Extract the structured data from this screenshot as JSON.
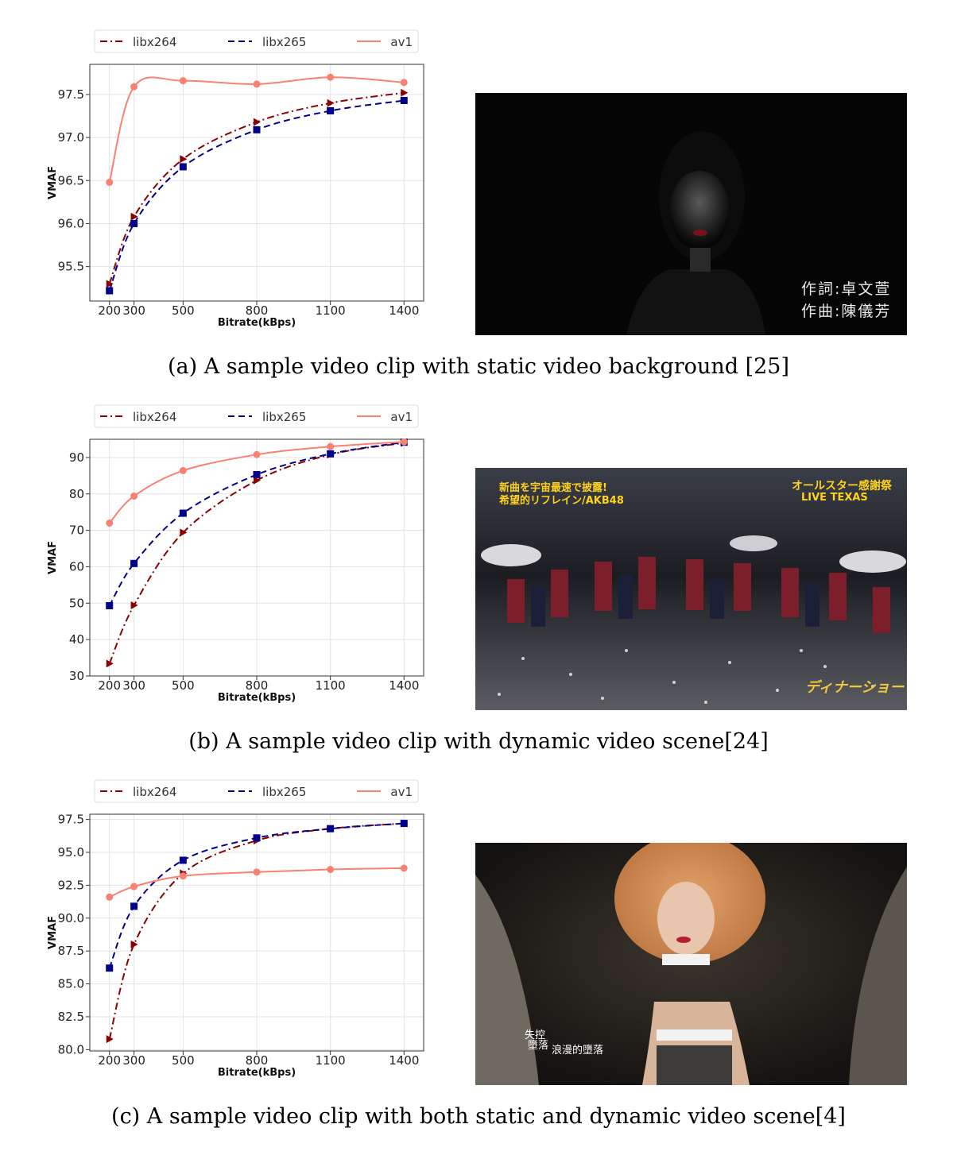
{
  "colors": {
    "libx264": "#8b0000",
    "libx265": "#00008b",
    "av1": "#fa8072"
  },
  "panels": [
    {
      "caption": "(a)  A sample video clip with static video background [25]",
      "chart_data": {
        "type": "line",
        "title": "",
        "xlabel": "Bitrate(kBps)",
        "ylabel": "VMAF",
        "x": [
          200,
          300,
          500,
          800,
          1100,
          1400
        ],
        "x_tick_labels": [
          "200",
          "300",
          "500",
          "800",
          "1100",
          "1400"
        ],
        "ylim": [
          95.1,
          97.85
        ],
        "yticks": [
          95.5,
          96.0,
          96.5,
          97.0,
          97.5
        ],
        "y_tick_labels": [
          "95.5",
          "96.0",
          "96.5",
          "97.0",
          "97.5"
        ],
        "grid": true,
        "legend": "top",
        "series": [
          {
            "name": "libx264",
            "values": [
              95.3,
              96.08,
              96.75,
              97.18,
              97.4,
              97.52
            ]
          },
          {
            "name": "libx265",
            "values": [
              95.22,
              96.0,
              96.66,
              97.09,
              97.31,
              97.43
            ]
          },
          {
            "name": "av1",
            "values": [
              96.48,
              97.59,
              97.66,
              97.62,
              97.7,
              97.64
            ]
          }
        ]
      },
      "overlay_lines": [
        "作詞:卓文萱",
        "作曲:陳儀芳"
      ]
    },
    {
      "caption": "(b)  A sample video clip with dynamic video scene[24]",
      "chart_data": {
        "type": "line",
        "title": "",
        "xlabel": "Bitrate(kBps)",
        "ylabel": "VMAF",
        "x": [
          200,
          300,
          500,
          800,
          1100,
          1400
        ],
        "x_tick_labels": [
          "200",
          "300",
          "500",
          "800",
          "1100",
          "1400"
        ],
        "ylim": [
          30,
          95
        ],
        "yticks": [
          30,
          40,
          50,
          60,
          70,
          80,
          90
        ],
        "y_tick_labels": [
          "30",
          "40",
          "50",
          "60",
          "70",
          "80",
          "90"
        ],
        "grid": true,
        "legend": "top",
        "series": [
          {
            "name": "libx264",
            "values": [
              33.4,
              49.4,
              69.4,
              83.7,
              90.8,
              94.0
            ]
          },
          {
            "name": "libx265",
            "values": [
              49.3,
              60.9,
              74.7,
              85.3,
              91.0,
              94.2
            ]
          },
          {
            "name": "av1",
            "values": [
              72.0,
              79.4,
              86.4,
              90.8,
              93.0,
              94.3
            ]
          }
        ]
      },
      "overlay_left_lines": [
        "新曲を宇宙最速で披露!",
        "希望的リフレイン/AKB48"
      ],
      "overlay_right_lines": [
        "オールスター感謝祭",
        "LIVE TEXAS"
      ],
      "overlay_logo": "ディナーショー"
    },
    {
      "caption": "(c)  A sample video clip with both static and dynamic video scene[4]",
      "chart_data": {
        "type": "line",
        "title": "",
        "xlabel": "Bitrate(kBps)",
        "ylabel": "VMAF",
        "x": [
          200,
          300,
          500,
          800,
          1100,
          1400
        ],
        "x_tick_labels": [
          "200",
          "300",
          "500",
          "800",
          "1100",
          "1400"
        ],
        "ylim": [
          79.9,
          97.9
        ],
        "yticks": [
          80.0,
          82.5,
          85.0,
          87.5,
          90.0,
          92.5,
          95.0,
          97.5
        ],
        "y_tick_labels": [
          "80.0",
          "82.5",
          "85.0",
          "87.5",
          "90.0",
          "92.5",
          "95.0",
          "97.5"
        ],
        "grid": true,
        "legend": "top",
        "series": [
          {
            "name": "libx264",
            "values": [
              80.8,
              88.0,
              93.4,
              95.9,
              96.8,
              97.2
            ]
          },
          {
            "name": "libx265",
            "values": [
              86.2,
              90.9,
              94.4,
              96.1,
              96.8,
              97.2
            ]
          },
          {
            "name": "av1",
            "values": [
              91.6,
              92.4,
              93.2,
              93.5,
              93.7,
              93.8
            ]
          }
        ]
      },
      "overlay_lines": [
        "失控",
        "墮落",
        "浪漫的墮落"
      ]
    }
  ]
}
